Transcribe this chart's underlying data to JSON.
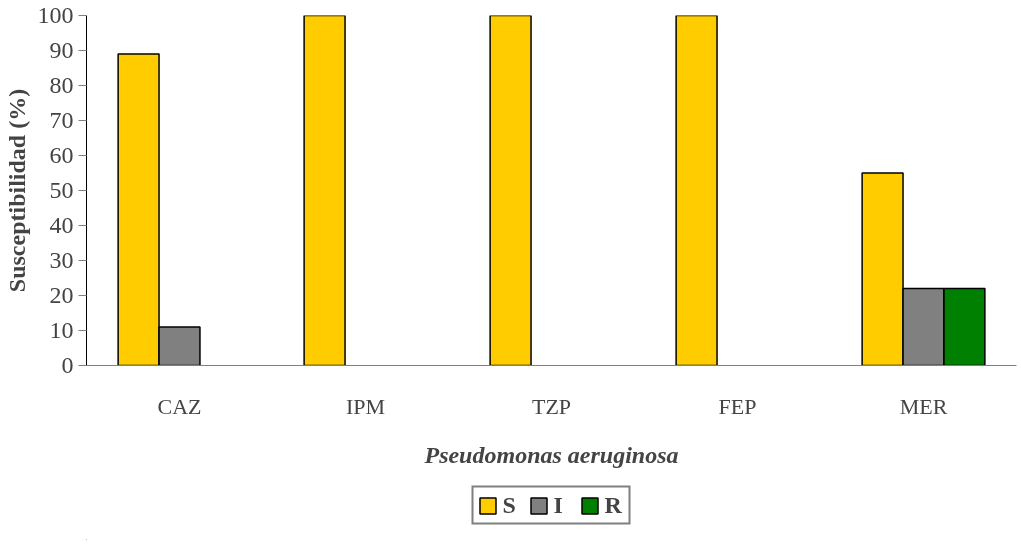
{
  "chart_data": {
    "type": "bar",
    "xlabel": "Pseudomonas aeruginosa",
    "ylabel": "Susceptibilidad (%)",
    "categories": [
      "CAZ",
      "IPM",
      "TZP",
      "FEP",
      "MER"
    ],
    "series": [
      {
        "name": "S",
        "color": "#ffcc00",
        "values": [
          89,
          100,
          100,
          100,
          55
        ]
      },
      {
        "name": "I",
        "color": "#808080",
        "values": [
          11,
          null,
          null,
          null,
          22
        ]
      },
      {
        "name": "R",
        "color": "#008000",
        "values": [
          null,
          null,
          null,
          null,
          22
        ]
      }
    ],
    "ylim": [
      0,
      100
    ],
    "yticks": [
      0,
      10,
      20,
      30,
      40,
      50,
      60,
      70,
      80,
      90,
      100
    ],
    "grid": false,
    "legend": "bottom"
  }
}
